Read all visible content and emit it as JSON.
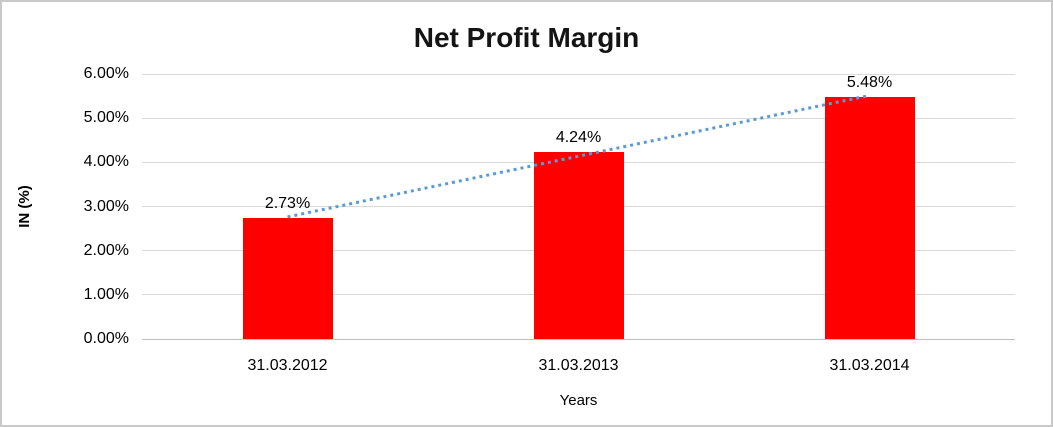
{
  "chart_data": {
    "type": "bar",
    "title": "Net Profit Margin",
    "xlabel": "Years",
    "ylabel": "IN (%)",
    "categories": [
      "31.03.2012",
      "31.03.2013",
      "31.03.2014"
    ],
    "values": [
      2.73,
      4.24,
      5.48
    ],
    "data_labels": [
      "2.73%",
      "4.24%",
      "5.48%"
    ],
    "ylim": [
      0,
      6
    ],
    "ytick_step": 1,
    "ytick_labels": [
      "0.00%",
      "1.00%",
      "2.00%",
      "3.00%",
      "4.00%",
      "5.00%",
      "6.00%"
    ],
    "grid": true,
    "legend": "none",
    "bar_color": "#ff0000",
    "trendline": {
      "style": "dotted",
      "color": "#5b9bd5",
      "from_category_index": 0,
      "to_category_index": 2
    },
    "colors": {
      "gridline": "#d9d9d9",
      "axis_line": "#bfbfbf",
      "text": "#000000",
      "title_text": "#141414",
      "frame_border": "#c9c9c9",
      "background": "#ffffff"
    }
  }
}
